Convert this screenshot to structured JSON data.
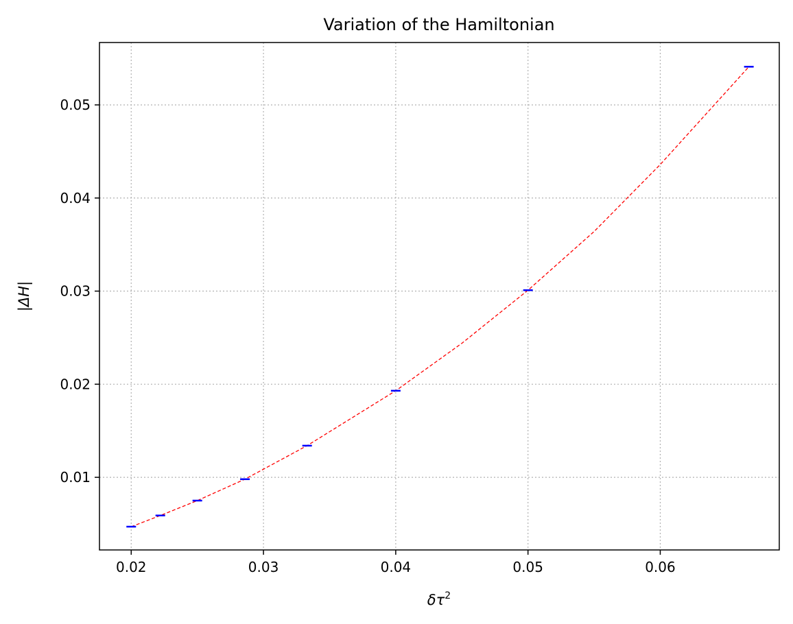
{
  "chart_data": {
    "type": "scatter",
    "title": "Variation of the Hamiltonian",
    "xlabel": "δτ",
    "xlabel_superscript": "2",
    "ylabel": "|ΔH|",
    "xlim": [
      0.0176,
      0.069
    ],
    "ylim": [
      0.0022,
      0.0567
    ],
    "grid": true,
    "xticks": [
      0.02,
      0.03,
      0.04,
      0.05,
      0.06
    ],
    "xtick_labels": [
      "0.02",
      "0.03",
      "0.04",
      "0.05",
      "0.06"
    ],
    "yticks": [
      0.01,
      0.02,
      0.03,
      0.04,
      0.05
    ],
    "ytick_labels": [
      "0.01",
      "0.02",
      "0.03",
      "0.04",
      "0.05"
    ],
    "series": [
      {
        "kind": "points-with-errorbars",
        "x": [
          0.02,
          0.0222,
          0.025,
          0.0286,
          0.0333,
          0.04,
          0.05,
          0.0667
        ],
        "y": [
          0.0047,
          0.0059,
          0.0075,
          0.0098,
          0.0134,
          0.0193,
          0.0301,
          0.0541
        ],
        "color": "#0000ff"
      },
      {
        "kind": "fit-line",
        "style": "dashed",
        "color": "#ff0000",
        "x": [
          0.02,
          0.0222,
          0.025,
          0.0286,
          0.0333,
          0.04,
          0.045,
          0.05,
          0.055,
          0.06,
          0.0667
        ],
        "y": [
          0.0047,
          0.0059,
          0.0075,
          0.0098,
          0.0134,
          0.0193,
          0.0244,
          0.0301,
          0.0364,
          0.0436,
          0.0541
        ]
      }
    ]
  }
}
